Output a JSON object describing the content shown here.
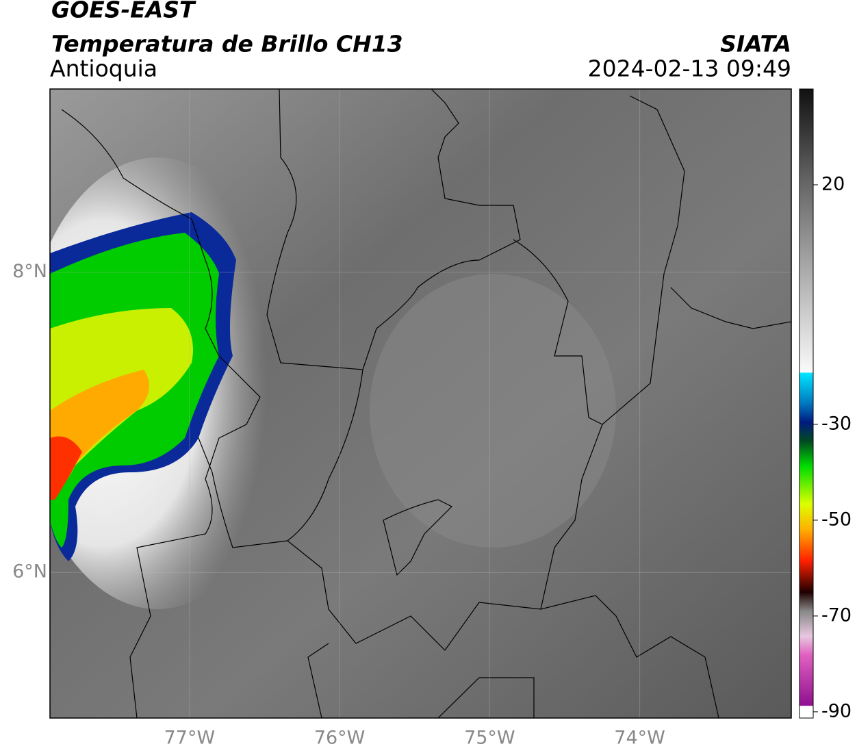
{
  "header": {
    "title": "GOES-EAST",
    "subtitle": "Temperatura de Brillo CH13",
    "region": "Antioquia",
    "source": "SIATA",
    "datetime": "2024-02-13 09:49"
  },
  "map": {
    "lonlim": [
      -77.93,
      -72.99
    ],
    "latlim": [
      5.03,
      9.22
    ],
    "lon_ticks": [
      {
        "value": -77,
        "label": "77°W"
      },
      {
        "value": -76,
        "label": "76°W"
      },
      {
        "value": -75,
        "label": "75°W"
      },
      {
        "value": -74,
        "label": "74°W"
      }
    ],
    "lat_ticks": [
      {
        "value": 8,
        "label": "8°N"
      },
      {
        "value": 6,
        "label": "6°N"
      }
    ]
  },
  "colorbar": {
    "lim": [
      -91.3,
      40
    ],
    "ticks": [
      20,
      -30,
      -50,
      -70,
      -90
    ]
  }
}
